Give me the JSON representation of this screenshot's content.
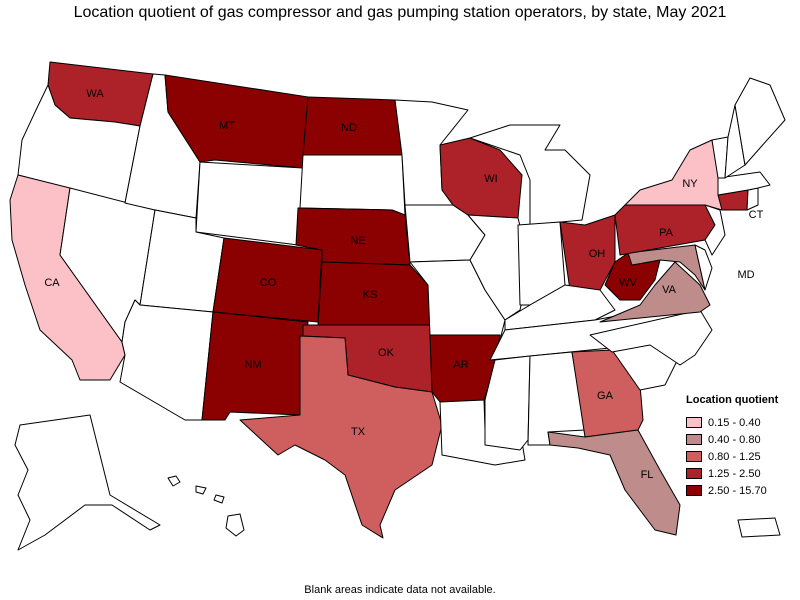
{
  "title": "Location quotient of gas compressor and gas pumping station operators, by state, May 2021",
  "footnote": "Blank areas indicate data not available.",
  "legend": {
    "title": "Location quotient",
    "items": [
      {
        "label": "0.15 - 0.40",
        "color": "#fcc0c7"
      },
      {
        "label": "0.40 - 0.80",
        "color": "#bf8c8c"
      },
      {
        "label": "0.80 - 1.25",
        "color": "#cf5f5f"
      },
      {
        "label": "1.25 - 2.50",
        "color": "#ad2229"
      },
      {
        "label": "2.50 - 15.70",
        "color": "#8b0000"
      }
    ]
  },
  "chart_data": {
    "type": "choropleth",
    "states": [
      {
        "abbr": "WA",
        "class": 3
      },
      {
        "abbr": "OR",
        "class": null
      },
      {
        "abbr": "CA",
        "class": 0
      },
      {
        "abbr": "NV",
        "class": null
      },
      {
        "abbr": "ID",
        "class": null
      },
      {
        "abbr": "MT",
        "class": 4
      },
      {
        "abbr": "WY",
        "class": null
      },
      {
        "abbr": "UT",
        "class": null
      },
      {
        "abbr": "AZ",
        "class": null
      },
      {
        "abbr": "CO",
        "class": 4
      },
      {
        "abbr": "NM",
        "class": 4
      },
      {
        "abbr": "ND",
        "class": 4
      },
      {
        "abbr": "SD",
        "class": null
      },
      {
        "abbr": "NE",
        "class": 4
      },
      {
        "abbr": "KS",
        "class": 4
      },
      {
        "abbr": "OK",
        "class": 3
      },
      {
        "abbr": "TX",
        "class": 2
      },
      {
        "abbr": "MN",
        "class": null
      },
      {
        "abbr": "IA",
        "class": null
      },
      {
        "abbr": "MO",
        "class": null
      },
      {
        "abbr": "AR",
        "class": 4
      },
      {
        "abbr": "LA",
        "class": null
      },
      {
        "abbr": "WI",
        "class": 3
      },
      {
        "abbr": "IL",
        "class": null
      },
      {
        "abbr": "MI",
        "class": null
      },
      {
        "abbr": "IN",
        "class": null
      },
      {
        "abbr": "OH",
        "class": 3
      },
      {
        "abbr": "KY",
        "class": null
      },
      {
        "abbr": "TN",
        "class": null
      },
      {
        "abbr": "MS",
        "class": null
      },
      {
        "abbr": "AL",
        "class": null
      },
      {
        "abbr": "GA",
        "class": 2
      },
      {
        "abbr": "FL",
        "class": 1
      },
      {
        "abbr": "SC",
        "class": null
      },
      {
        "abbr": "NC",
        "class": null
      },
      {
        "abbr": "VA",
        "class": 1
      },
      {
        "abbr": "WV",
        "class": 4
      },
      {
        "abbr": "MD",
        "class": 1
      },
      {
        "abbr": "DE",
        "class": null
      },
      {
        "abbr": "PA",
        "class": 3
      },
      {
        "abbr": "NJ",
        "class": null
      },
      {
        "abbr": "NY",
        "class": 0
      },
      {
        "abbr": "CT",
        "class": 3
      },
      {
        "abbr": "RI",
        "class": null
      },
      {
        "abbr": "MA",
        "class": null
      },
      {
        "abbr": "VT",
        "class": null
      },
      {
        "abbr": "NH",
        "class": null
      },
      {
        "abbr": "ME",
        "class": null
      },
      {
        "abbr": "AK",
        "class": null
      },
      {
        "abbr": "HI",
        "class": null
      },
      {
        "abbr": "PR",
        "class": null
      }
    ]
  }
}
